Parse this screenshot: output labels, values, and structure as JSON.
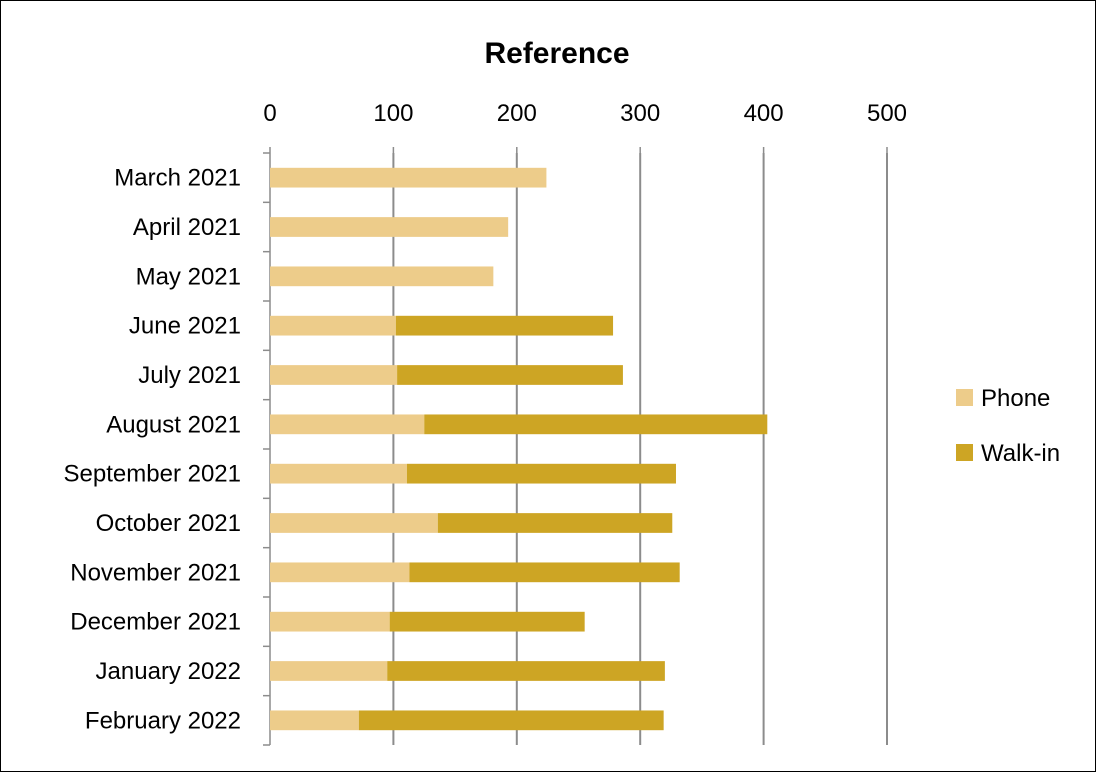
{
  "chart_data": {
    "type": "bar",
    "orientation": "horizontal",
    "stacked": true,
    "title": "Reference",
    "xlabel": "",
    "ylabel": "",
    "xlim": [
      0,
      500
    ],
    "x_ticks": [
      0,
      100,
      200,
      300,
      400,
      500
    ],
    "x_axis_position": "top",
    "grid": true,
    "legend_position": "right",
    "categories": [
      "March 2021",
      "April 2021",
      "May 2021",
      "June 2021",
      "July 2021",
      "August 2021",
      "September 2021",
      "October 2021",
      "November 2021",
      "December 2021",
      "January 2022",
      "February 2022"
    ],
    "series": [
      {
        "name": "Phone",
        "color": "#EDCC8A",
        "values": [
          224,
          193,
          181,
          102,
          103,
          125,
          111,
          136,
          113,
          97,
          95,
          72
        ]
      },
      {
        "name": "Walk-in",
        "color": "#CDA524",
        "values": [
          0,
          0,
          0,
          176,
          183,
          278,
          218,
          190,
          219,
          158,
          225,
          247
        ]
      }
    ]
  }
}
